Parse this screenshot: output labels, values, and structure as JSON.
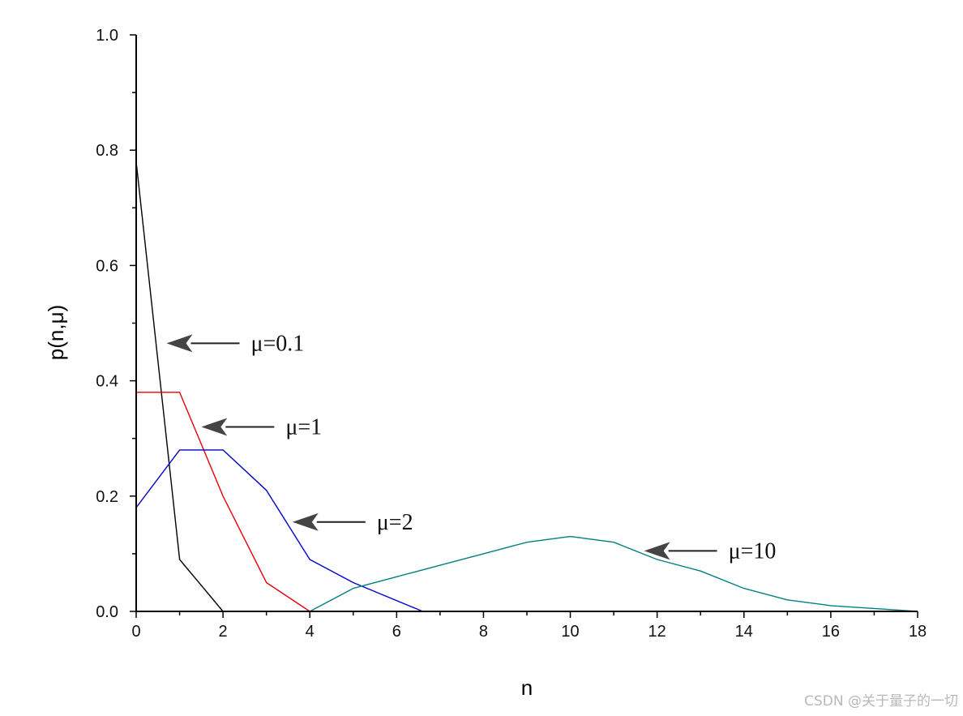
{
  "chart_data": {
    "type": "line",
    "title": "",
    "xlabel": "n",
    "ylabel": "p(n,μ)",
    "xlim": [
      0,
      18
    ],
    "ylim": [
      0,
      1.0
    ],
    "x_ticks": [
      "0",
      "2",
      "4",
      "6",
      "8",
      "10",
      "12",
      "14",
      "16",
      "18"
    ],
    "y_ticks": [
      "0.0",
      "0.2",
      "0.4",
      "0.6",
      "0.8",
      "1.0"
    ],
    "grid": false,
    "series": [
      {
        "name": "μ=0.1",
        "color": "#000000",
        "points": [
          [
            0,
            0.78
          ],
          [
            1,
            0.09
          ],
          [
            2,
            0.0
          ]
        ]
      },
      {
        "name": "μ=1",
        "color": "#e8000b",
        "points": [
          [
            0,
            0.38
          ],
          [
            1,
            0.38
          ],
          [
            2,
            0.2
          ],
          [
            3,
            0.05
          ],
          [
            4,
            0.0
          ]
        ]
      },
      {
        "name": "μ=2",
        "color": "#0000cc",
        "points": [
          [
            0,
            0.18
          ],
          [
            1,
            0.28
          ],
          [
            2,
            0.28
          ],
          [
            3,
            0.21
          ],
          [
            4,
            0.09
          ],
          [
            5,
            0.05
          ],
          [
            6.6,
            0.0
          ]
        ]
      },
      {
        "name": "μ=10",
        "color": "#008080",
        "points": [
          [
            4,
            0.0
          ],
          [
            5,
            0.04
          ],
          [
            6,
            0.06
          ],
          [
            7,
            0.08
          ],
          [
            8,
            0.1
          ],
          [
            9,
            0.12
          ],
          [
            10,
            0.13
          ],
          [
            11,
            0.12
          ],
          [
            12,
            0.09
          ],
          [
            13,
            0.07
          ],
          [
            14,
            0.04
          ],
          [
            15,
            0.02
          ],
          [
            16,
            0.01
          ],
          [
            17,
            0.005
          ],
          [
            18,
            0.0
          ]
        ]
      }
    ],
    "annotations": [
      {
        "text": "μ=0.1",
        "points_to": [
          0.7,
          0.465
        ]
      },
      {
        "text": "μ=1",
        "points_to": [
          1.5,
          0.32
        ]
      },
      {
        "text": "μ=2",
        "points_to": [
          3.6,
          0.155
        ]
      },
      {
        "text": "μ=10",
        "points_to": [
          11.7,
          0.105
        ]
      }
    ]
  },
  "watermark": "CSDN @关于量子的一切"
}
